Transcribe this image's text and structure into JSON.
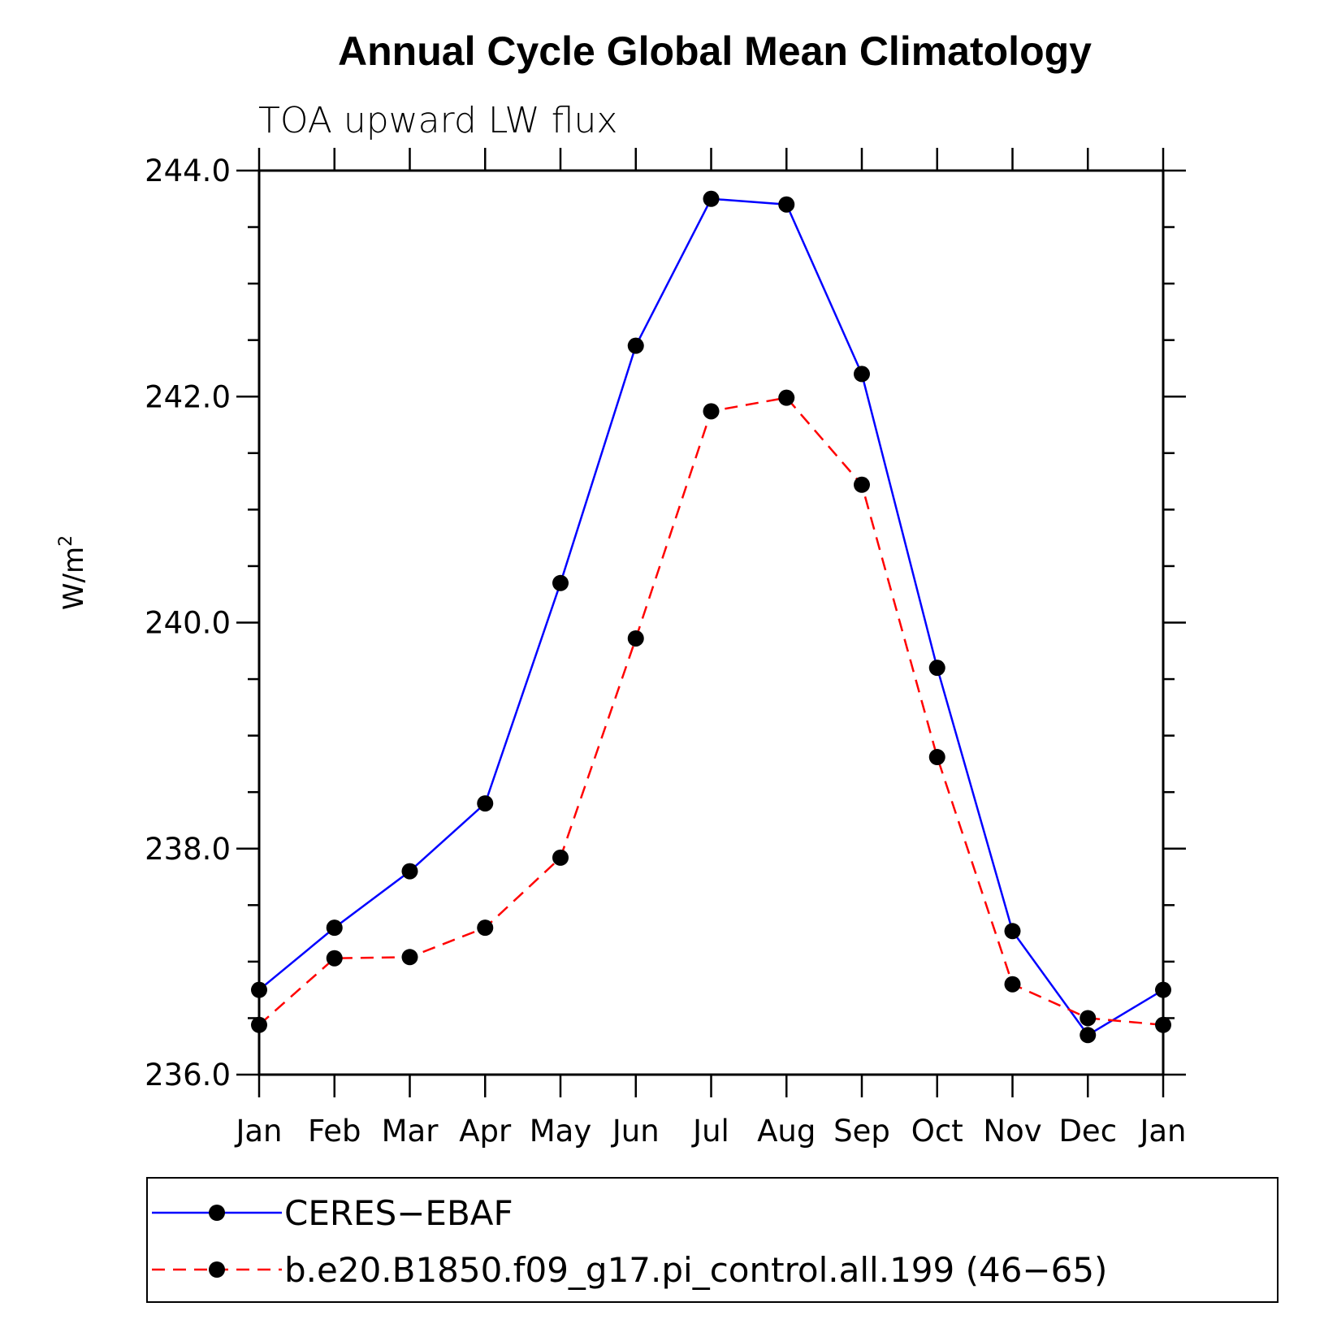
{
  "chart_data": {
    "type": "line",
    "title": "Annual Cycle Global Mean Climatology",
    "subtitle": "TOA upward LW flux",
    "xlabel": "",
    "ylabel": "W/m",
    "ylabel_superscript": "2",
    "categories": [
      "Jan",
      "Feb",
      "Mar",
      "Apr",
      "May",
      "Jun",
      "Jul",
      "Aug",
      "Sep",
      "Oct",
      "Nov",
      "Dec",
      "Jan"
    ],
    "ylim": [
      236.0,
      244.0
    ],
    "yticks": [
      "236.0",
      "238.0",
      "240.0",
      "242.0",
      "244.0"
    ],
    "grid": false,
    "legend_position": "bottom",
    "series": [
      {
        "name": "CERES−EBAF",
        "color": "#0000ff",
        "line_style": "solid",
        "marker": "filled-circle",
        "values": [
          236.75,
          237.3,
          237.8,
          238.4,
          240.35,
          242.45,
          243.75,
          243.7,
          242.2,
          239.6,
          237.27,
          236.35,
          236.75
        ]
      },
      {
        "name": "b.e20.B1850.f09_g17.pi_control.all.199 (46−65)",
        "color": "#ff0000",
        "line_style": "dashed",
        "marker": "filled-circle",
        "values": [
          236.44,
          237.03,
          237.04,
          237.3,
          237.92,
          239.86,
          241.87,
          241.99,
          241.22,
          238.81,
          236.8,
          236.5,
          236.44
        ]
      }
    ]
  }
}
